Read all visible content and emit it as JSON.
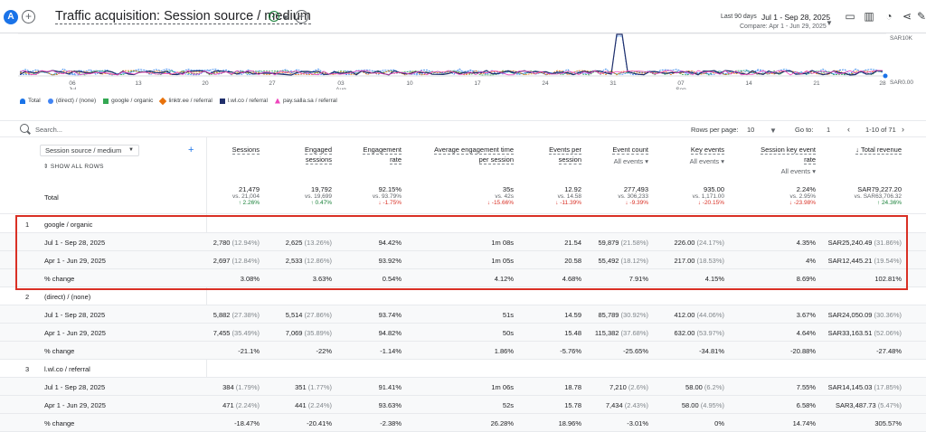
{
  "header": {
    "avatar": "A",
    "title": "Traffic acquisition: Session source / medium",
    "date_label": "Last 90 days",
    "date_range": "Jul 1 - Sep 28, 2025",
    "compare": "Compare: Apr 1 - Jun 29, 2025"
  },
  "chart_data": {
    "type": "line",
    "x_ticks": [
      "06 Jul",
      "13",
      "20",
      "27",
      "03 Aug",
      "10",
      "17",
      "24",
      "31",
      "07 Sep",
      "14",
      "21",
      "28"
    ],
    "y_ticks": [
      "SAR10K",
      "SAR0.00"
    ],
    "series": [
      {
        "name": "Total",
        "color": "#1a73e8"
      },
      {
        "name": "(direct) / (none)",
        "color": "#4285f4"
      },
      {
        "name": "google / organic",
        "color": "#34a853"
      },
      {
        "name": "linktr.ee / referral",
        "color": "#e8710a"
      },
      {
        "name": "l.wl.co / referral",
        "color": "#202f6b"
      },
      {
        "name": "pay.salla.sa / referral",
        "color": "#ee46bc"
      }
    ]
  },
  "search": {
    "placeholder": "Search..."
  },
  "pager": {
    "rows_label": "Rows per page:",
    "rows_value": "10",
    "goto_label": "Go to:",
    "goto_value": "1",
    "range": "1-10 of 71"
  },
  "dimension": {
    "label": "Session source / medium",
    "show_all": "SHOW ALL ROWS"
  },
  "columns": [
    {
      "l1": "Sessions",
      "l2": "",
      "l3": ""
    },
    {
      "l1": "Engaged",
      "l2": "sessions",
      "l3": ""
    },
    {
      "l1": "Engagement",
      "l2": "rate",
      "l3": ""
    },
    {
      "l1": "Average engagement time",
      "l2": "per session",
      "l3": ""
    },
    {
      "l1": "Events per",
      "l2": "session",
      "l3": ""
    },
    {
      "l1": "Event count",
      "l2": "All events",
      "l3": ""
    },
    {
      "l1": "Key events",
      "l2": "All events",
      "l3": ""
    },
    {
      "l1": "Session key event",
      "l2": "rate",
      "l3": "All events"
    },
    {
      "l1": "Total revenue",
      "l2": "",
      "l3": ""
    }
  ],
  "total": {
    "label": "Total",
    "values": [
      "21,479",
      "19,792",
      "92.15%",
      "35s",
      "12.92",
      "277,493",
      "935.00",
      "2.24%",
      "SAR79,227.20"
    ],
    "compare": [
      "vs. 21,004",
      "vs. 19,699",
      "vs. 93.79%",
      "vs. 42s",
      "vs. 14.58",
      "vs. 306,233",
      "vs. 1,171.00",
      "vs. 2.95%",
      "vs. SAR63,706.32"
    ],
    "change": [
      "↑ 2.26%",
      "↑ 0.47%",
      "↓ -1.75%",
      "↓ -15.66%",
      "↓ -11.39%",
      "↓ -9.39%",
      "↓ -20.15%",
      "↓ -23.98%",
      "↑ 24.36%"
    ]
  },
  "groups": [
    {
      "num": "1",
      "name": "google / organic",
      "rows": [
        {
          "label": "Jul 1 - Sep 28, 2025",
          "values": [
            "2,780 (12.94%)",
            "2,625 (13.26%)",
            "94.42%",
            "1m 08s",
            "21.54",
            "59,879 (21.58%)",
            "226.00 (24.17%)",
            "4.35%",
            "SAR25,240.49 (31.86%)"
          ]
        },
        {
          "label": "Apr 1 - Jun 29, 2025",
          "values": [
            "2,697 (12.84%)",
            "2,533 (12.86%)",
            "93.92%",
            "1m 05s",
            "20.58",
            "55,492 (18.12%)",
            "217.00 (18.53%)",
            "4%",
            "SAR12,445.21 (19.54%)"
          ]
        },
        {
          "label": "% change",
          "values": [
            "3.08%",
            "3.63%",
            "0.54%",
            "4.12%",
            "4.68%",
            "7.91%",
            "4.15%",
            "8.69%",
            "102.81%"
          ]
        }
      ]
    },
    {
      "num": "2",
      "name": "(direct) / (none)",
      "rows": [
        {
          "label": "Jul 1 - Sep 28, 2025",
          "values": [
            "5,882 (27.38%)",
            "5,514 (27.86%)",
            "93.74%",
            "51s",
            "14.59",
            "85,789 (30.92%)",
            "412.00 (44.06%)",
            "3.67%",
            "SAR24,050.09 (30.36%)"
          ]
        },
        {
          "label": "Apr 1 - Jun 29, 2025",
          "values": [
            "7,455 (35.49%)",
            "7,069 (35.89%)",
            "94.82%",
            "50s",
            "15.48",
            "115,382 (37.68%)",
            "632.00 (53.97%)",
            "4.64%",
            "SAR33,163.51 (52.06%)"
          ]
        },
        {
          "label": "% change",
          "values": [
            "-21.1%",
            "-22%",
            "-1.14%",
            "1.86%",
            "-5.76%",
            "-25.65%",
            "-34.81%",
            "-20.88%",
            "-27.48%"
          ]
        }
      ]
    },
    {
      "num": "3",
      "name": "l.wl.co / referral",
      "rows": [
        {
          "label": "Jul 1 - Sep 28, 2025",
          "values": [
            "384 (1.79%)",
            "351 (1.77%)",
            "91.41%",
            "1m 06s",
            "18.78",
            "7,210 (2.6%)",
            "58.00 (6.2%)",
            "7.55%",
            "SAR14,145.03 (17.85%)"
          ]
        },
        {
          "label": "Apr 1 - Jun 29, 2025",
          "values": [
            "471 (2.24%)",
            "441 (2.24%)",
            "93.63%",
            "52s",
            "15.78",
            "7,434 (2.43%)",
            "58.00 (4.95%)",
            "6.58%",
            "SAR3,487.73 (5.47%)"
          ]
        },
        {
          "label": "% change",
          "values": [
            "-18.47%",
            "-20.41%",
            "-2.38%",
            "26.28%",
            "18.96%",
            "-3.01%",
            "0%",
            "14.74%",
            "305.57%"
          ]
        }
      ]
    }
  ]
}
